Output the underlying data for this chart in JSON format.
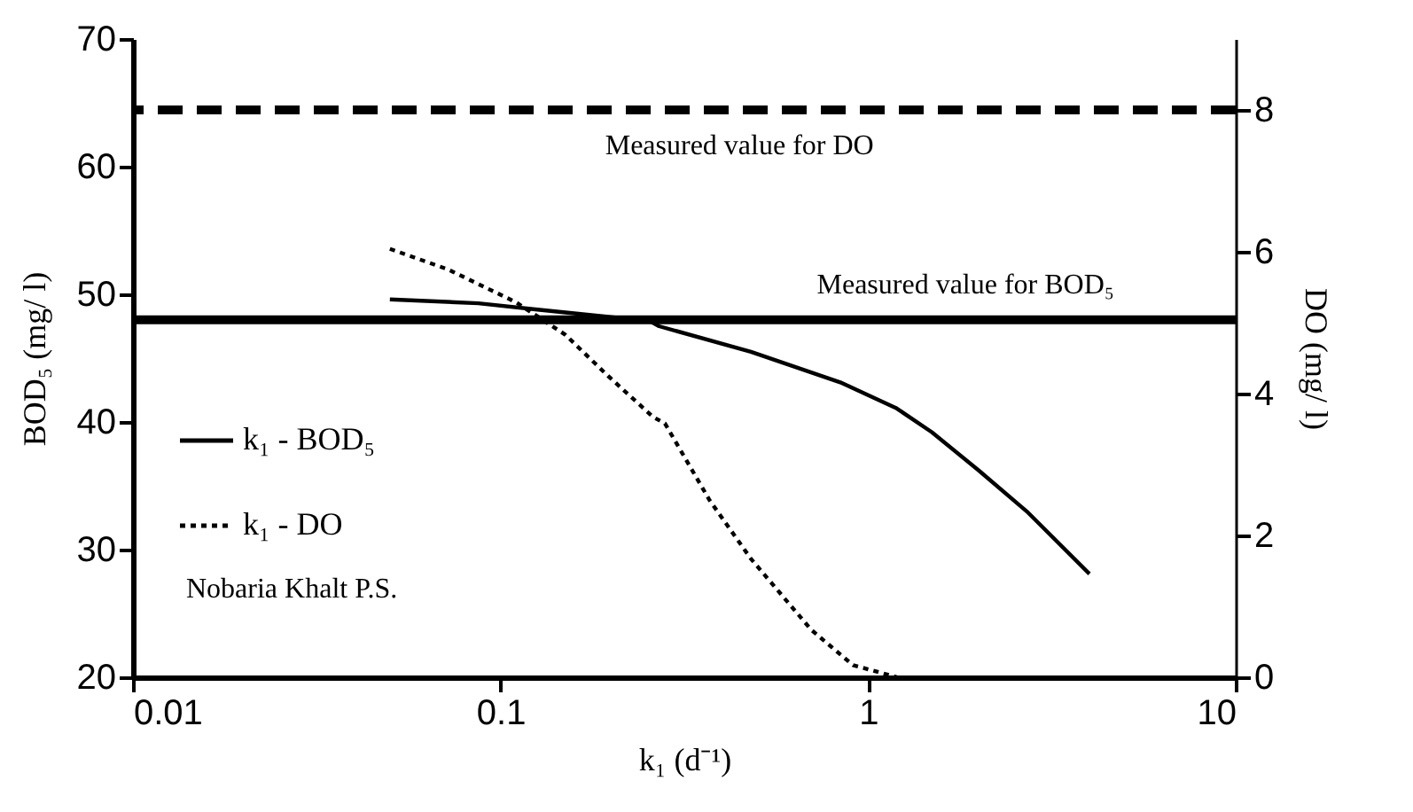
{
  "chart_data": {
    "type": "line",
    "xlabel": "k₁ (d⁻¹)",
    "ylabel": "BOD₅ (mg/ l)",
    "y2label": "DO (mg/ l)",
    "log": "x",
    "xlim": [
      0.01,
      10
    ],
    "xticks": [
      0.01,
      0.1,
      1,
      10
    ],
    "ylim": [
      20,
      70
    ],
    "yticks": [
      20,
      30,
      40,
      50,
      60,
      70
    ],
    "y2lim": [
      0,
      9
    ],
    "y2ticks": [
      0,
      2,
      4,
      6,
      8
    ],
    "grid": false,
    "legend": "bottom left",
    "marker": "none",
    "series": [
      {
        "name": "k₁ - BOD₅",
        "color": "#000000",
        "line_style": "solid",
        "x": [
          0.05,
          0.087,
          0.126,
          0.255,
          0.27,
          0.48,
          0.84,
          1.19,
          1.49,
          2.0,
          2.7,
          4.0
        ],
        "values": [
          49.6,
          49.3,
          48.8,
          47.9,
          47.5,
          45.5,
          43.1,
          41.1,
          39.2,
          36.2,
          33.0,
          28.1
        ]
      },
      {
        "name": "k₁ - DO",
        "color": "#000000",
        "line_style": "dotted",
        "axis": "y2",
        "x": [
          0.05,
          0.072,
          0.11,
          0.15,
          0.196,
          0.26,
          0.28,
          0.37,
          0.48,
          0.7,
          0.91,
          1.2
        ],
        "values": [
          6.04,
          5.75,
          5.29,
          4.83,
          4.25,
          3.67,
          3.58,
          2.5,
          1.67,
          0.67,
          0.17,
          0
        ]
      }
    ],
    "ref_lines": [
      {
        "axis": "y2",
        "value": 8,
        "label": "Measured value for DO",
        "color": "#000000",
        "line_style": "dashed"
      },
      {
        "axis": "y",
        "value": 48,
        "label": "Measured value for BOD₅",
        "color": "#000000",
        "line_style": "solid"
      }
    ],
    "annotations": [
      "Nobaria Khalt P.S."
    ]
  }
}
